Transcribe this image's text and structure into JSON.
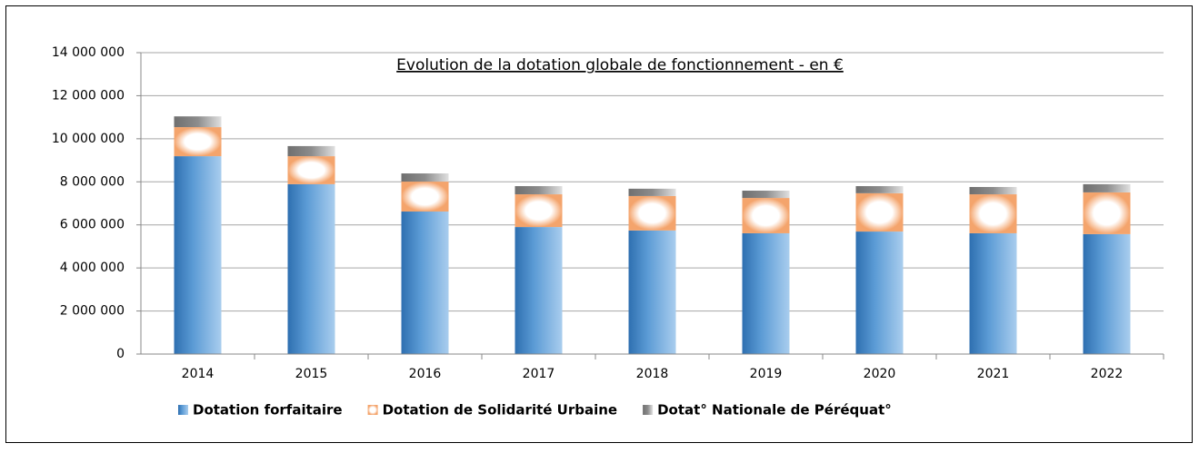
{
  "chart_data": {
    "type": "stacked_bar",
    "title": "Evolution de la dotation globale de fonctionnement - en €",
    "categories": [
      "2014",
      "2015",
      "2016",
      "2017",
      "2018",
      "2019",
      "2020",
      "2021",
      "2022"
    ],
    "series": [
      {
        "name": "Dotation forfaitaire",
        "color": "#5b9bd5",
        "values": [
          9190000,
          7890000,
          6620000,
          5900000,
          5740000,
          5610000,
          5690000,
          5610000,
          5570000
        ]
      },
      {
        "name": "Dotation de Solidarité Urbaine",
        "color": "#f4a46c",
        "values": [
          1350000,
          1300000,
          1390000,
          1520000,
          1600000,
          1640000,
          1780000,
          1810000,
          1940000
        ]
      },
      {
        "name": "Dotat° Nationale de Péréquat°",
        "color": "#8c8c8c",
        "values": [
          500000,
          470000,
          380000,
          380000,
          340000,
          340000,
          330000,
          340000,
          380000
        ]
      }
    ],
    "ylim": [
      0,
      14000000
    ],
    "yticks": [
      0,
      {
        "value": 2000000,
        "label": "2 000 000"
      },
      {
        "value": 4000000,
        "label": "4 000 000"
      },
      {
        "value": 6000000,
        "label": "6 000 000"
      },
      {
        "value": 8000000,
        "label": "8 000 000"
      },
      {
        "value": 10000000,
        "label": "10 000 000"
      },
      {
        "value": 12000000,
        "label": "12 000 000"
      },
      {
        "value": 14000000,
        "label": "14 000 000"
      }
    ],
    "grid": true,
    "legend": "bottom"
  }
}
